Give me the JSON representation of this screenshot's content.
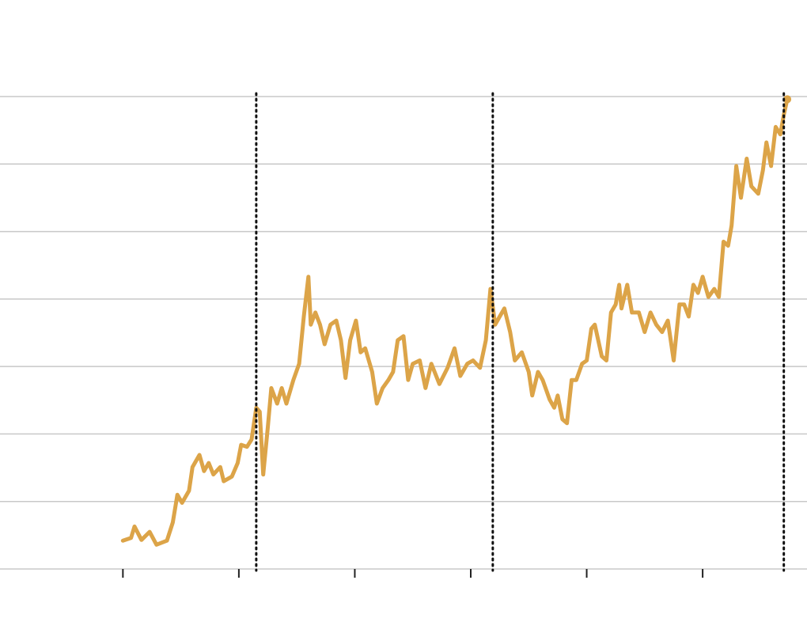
{
  "chart_data": {
    "type": "line",
    "x": [
      0,
      0.07,
      0.1,
      0.16,
      0.23,
      0.29,
      0.38,
      0.43,
      0.47,
      0.51,
      0.57,
      0.6,
      0.66,
      0.7,
      0.74,
      0.78,
      0.84,
      0.87,
      0.94,
      0.99,
      1.02,
      1.07,
      1.11,
      1.15,
      1.18,
      1.21,
      1.25,
      1.28,
      1.33,
      1.37,
      1.41,
      1.47,
      1.52,
      1.56,
      1.6,
      1.62,
      1.66,
      1.7,
      1.74,
      1.79,
      1.84,
      1.88,
      1.92,
      1.96,
      2.01,
      2.05,
      2.09,
      2.15,
      2.19,
      2.24,
      2.29,
      2.33,
      2.37,
      2.42,
      2.46,
      2.5,
      2.56,
      2.61,
      2.66,
      2.73,
      2.8,
      2.86,
      2.91,
      2.97,
      3.02,
      3.08,
      3.13,
      3.17,
      3.21,
      3.25,
      3.29,
      3.34,
      3.38,
      3.44,
      3.5,
      3.53,
      3.58,
      3.62,
      3.68,
      3.72,
      3.75,
      3.79,
      3.83,
      3.87,
      3.91,
      3.96,
      4.0,
      4.04,
      4.07,
      4.13,
      4.17,
      4.21,
      4.25,
      4.28,
      4.3,
      4.35,
      4.39,
      4.45,
      4.5,
      4.55,
      4.6,
      4.65,
      4.7,
      4.75,
      4.8,
      4.84,
      4.88,
      4.92,
      4.96,
      5.0,
      5.05,
      5.1,
      5.14,
      5.18,
      5.22,
      5.25,
      5.29,
      5.33,
      5.35,
      5.38,
      5.42,
      5.48,
      5.52,
      5.55,
      5.59,
      5.63,
      5.67,
      5.7,
      5.73
    ],
    "values": [
      0.42,
      0.46,
      0.63,
      0.43,
      0.55,
      0.36,
      0.42,
      0.69,
      1.1,
      0.98,
      1.16,
      1.51,
      1.69,
      1.45,
      1.57,
      1.4,
      1.51,
      1.3,
      1.37,
      1.57,
      1.84,
      1.81,
      1.92,
      2.39,
      2.33,
      1.4,
      2.1,
      2.68,
      2.45,
      2.68,
      2.45,
      2.8,
      3.04,
      3.74,
      4.33,
      3.62,
      3.8,
      3.62,
      3.33,
      3.62,
      3.68,
      3.39,
      2.83,
      3.39,
      3.68,
      3.21,
      3.27,
      2.92,
      2.45,
      2.68,
      2.8,
      2.92,
      3.39,
      3.45,
      2.8,
      3.04,
      3.09,
      2.68,
      3.04,
      2.74,
      2.98,
      3.27,
      2.86,
      3.04,
      3.09,
      2.98,
      3.39,
      4.15,
      3.62,
      3.74,
      3.86,
      3.51,
      3.09,
      3.21,
      2.92,
      2.57,
      2.92,
      2.8,
      2.51,
      2.39,
      2.57,
      2.22,
      2.16,
      2.8,
      2.8,
      3.04,
      3.09,
      3.56,
      3.62,
      3.15,
      3.09,
      3.8,
      3.92,
      4.21,
      3.86,
      4.21,
      3.8,
      3.8,
      3.51,
      3.8,
      3.62,
      3.51,
      3.68,
      3.09,
      3.92,
      3.92,
      3.74,
      4.21,
      4.09,
      4.33,
      4.03,
      4.15,
      4.03,
      4.85,
      4.79,
      5.09,
      5.97,
      5.5,
      5.73,
      6.08,
      5.67,
      5.56,
      5.91,
      6.32,
      5.97,
      6.55,
      6.44,
      6.73,
      6.96
    ],
    "color": "#dca448",
    "markers_x": [
      1.15,
      3.19,
      5.7
    ],
    "xlim": [
      -1.06,
      5.9
    ],
    "xticks": [
      0,
      1,
      2,
      3,
      4,
      5
    ],
    "ylim": [
      0,
      7
    ],
    "yticks": [
      0,
      1,
      2,
      3,
      4,
      5,
      6,
      7
    ],
    "grid": true
  }
}
